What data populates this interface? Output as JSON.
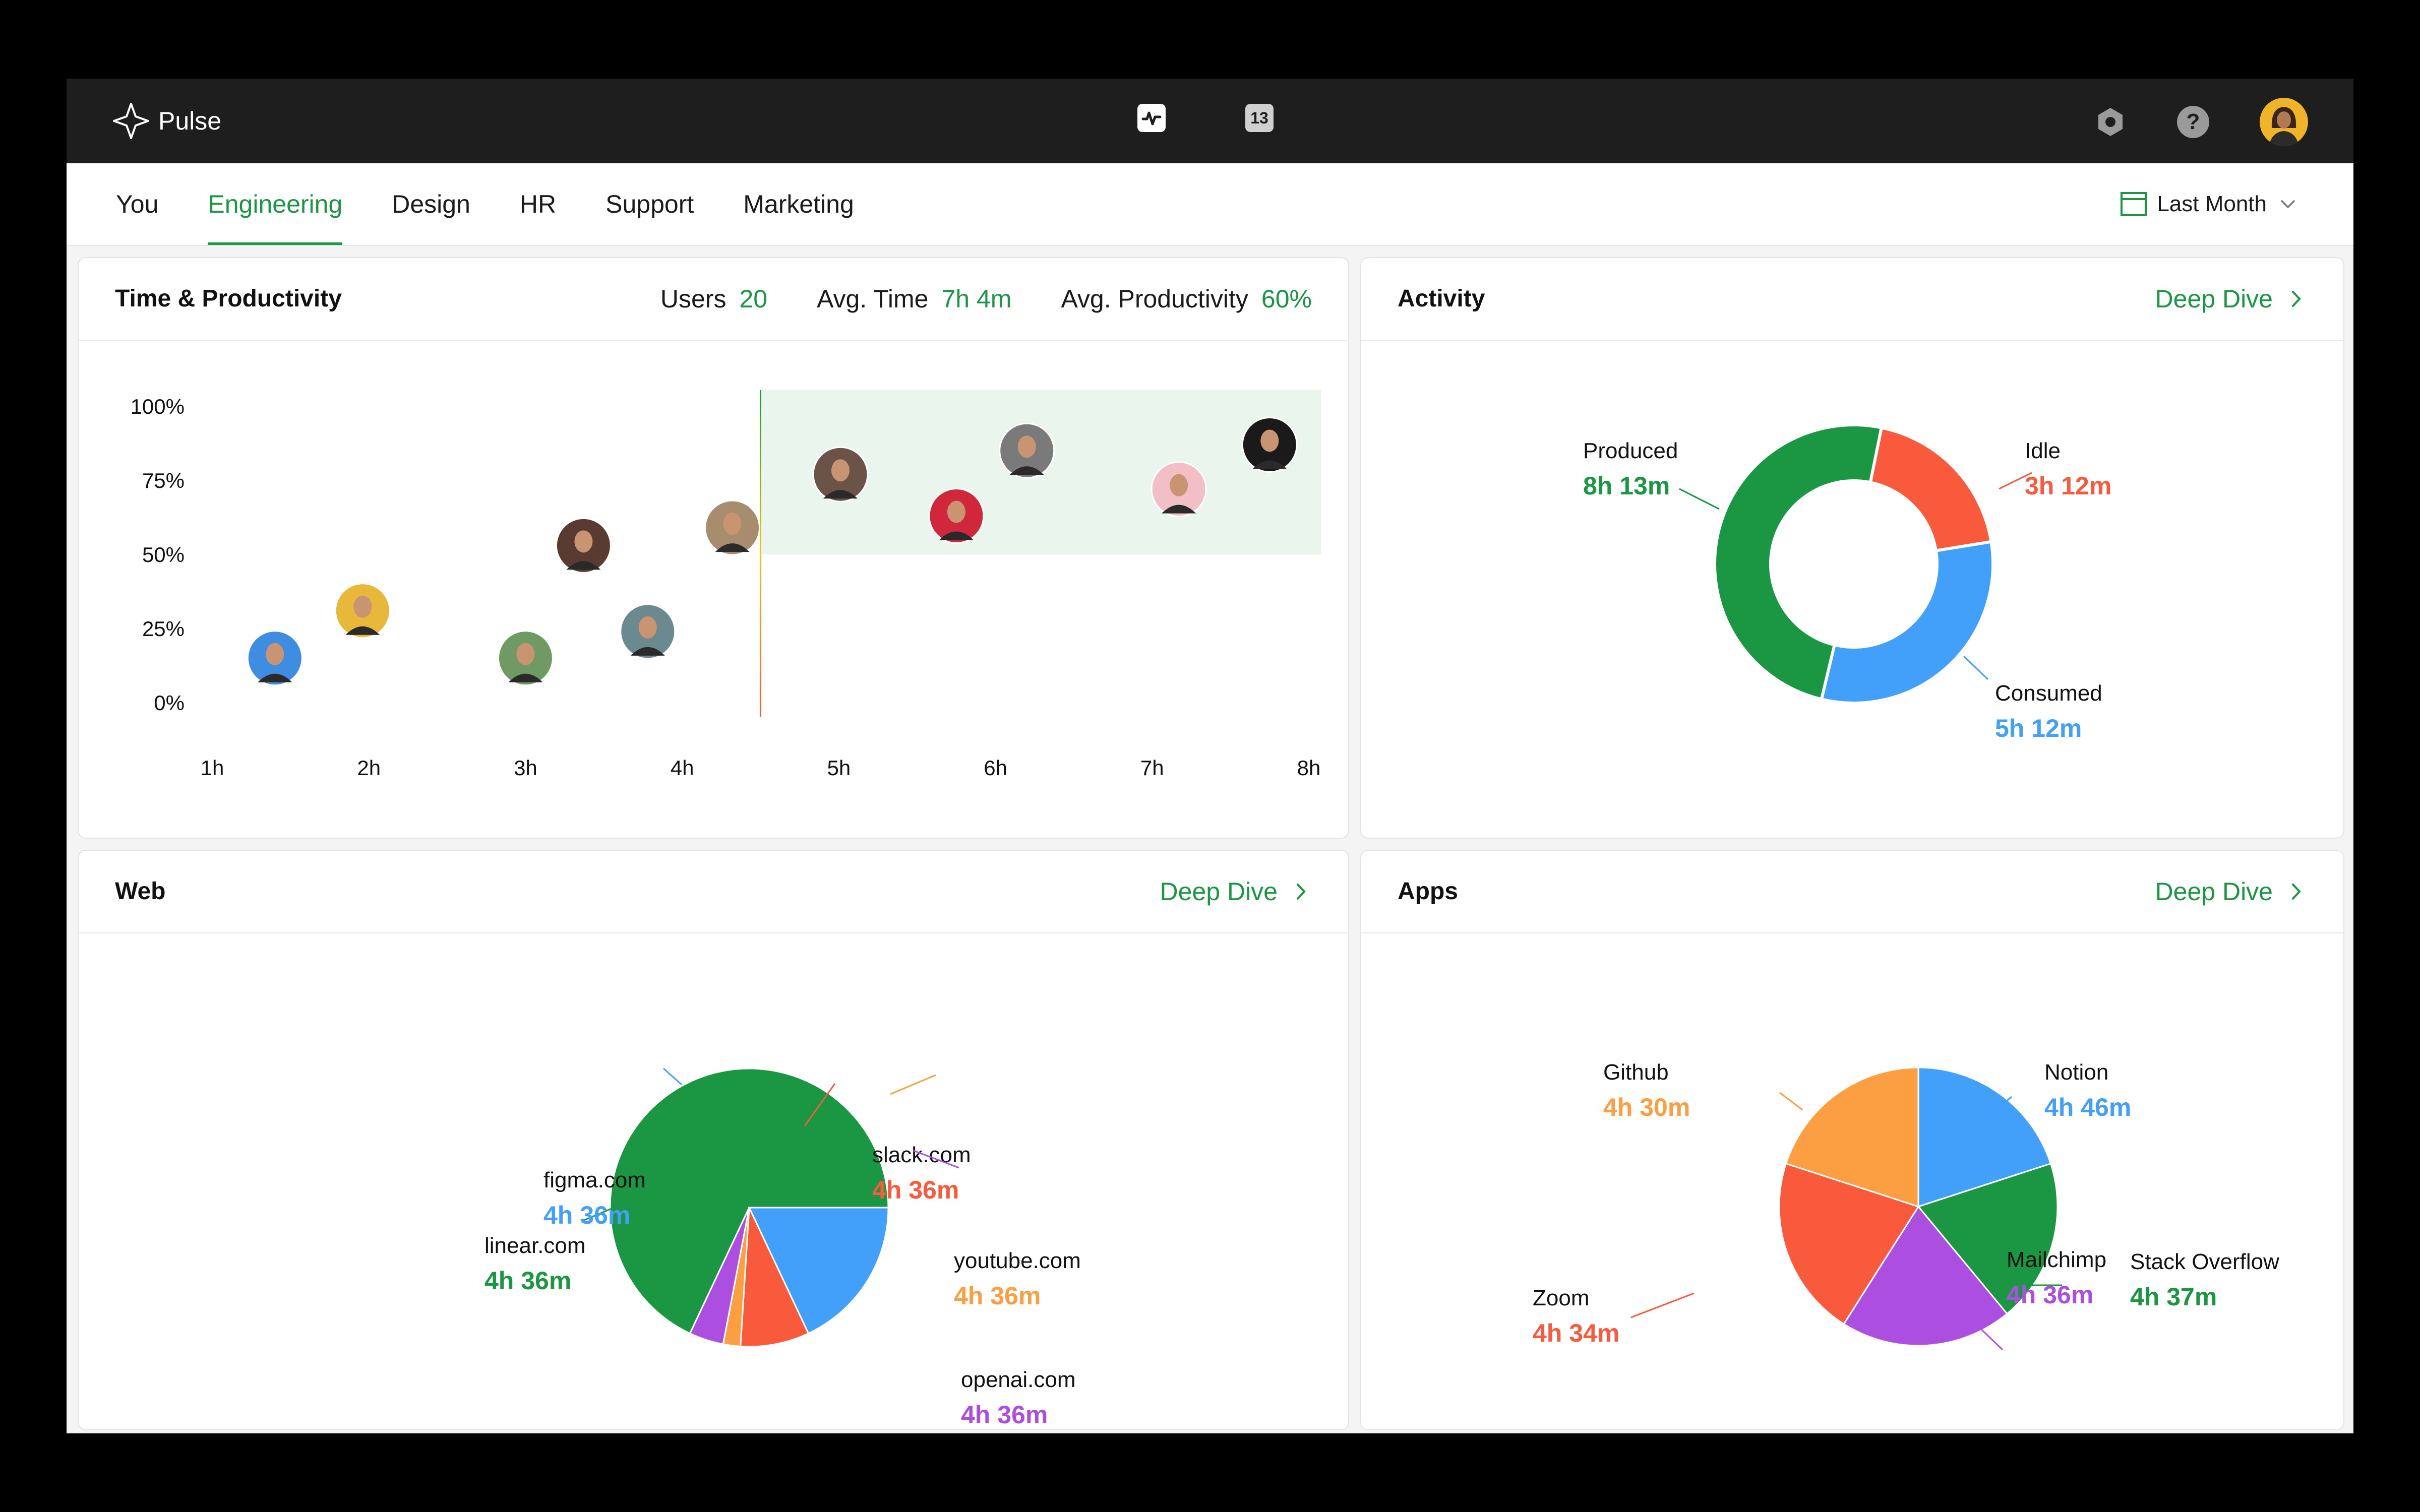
{
  "app": {
    "name": "Pulse",
    "notification_count": "13"
  },
  "icons": {
    "logo": "sparkle-logo-icon",
    "activity": "activity-icon",
    "badge": "calendar-badge-icon",
    "settings": "hexagon-settings-icon",
    "help": "help-icon",
    "avatar": "user-avatar",
    "help_glyph": "?"
  },
  "tabs": [
    {
      "label": "You",
      "active": false
    },
    {
      "label": "Engineering",
      "active": true
    },
    {
      "label": "Design",
      "active": false
    },
    {
      "label": "HR",
      "active": false
    },
    {
      "label": "Support",
      "active": false
    },
    {
      "label": "Marketing",
      "active": false
    }
  ],
  "period": {
    "label": "Last Month"
  },
  "colors": {
    "green": "#1b9643",
    "red": "#fa5a3c",
    "blue": "#42a0fa",
    "orange": "#fc9e42",
    "purple": "#ac4fe0"
  },
  "productivity": {
    "title": "Time & Productivity",
    "stats": [
      {
        "label": "Users",
        "value": "20"
      },
      {
        "label": "Avg. Time",
        "value": "7h 4m"
      },
      {
        "label": "Avg. Productivity",
        "value": "60%"
      }
    ]
  },
  "activity": {
    "title": "Activity",
    "deep_dive": "Deep Dive"
  },
  "web": {
    "title": "Web",
    "deep_dive": "Deep Dive"
  },
  "apps": {
    "title": "Apps",
    "deep_dive": "Deep Dive"
  },
  "chart_data": [
    {
      "type": "scatter",
      "y_ticks": [
        "100%",
        "75%",
        "50%",
        "25%",
        "0%"
      ],
      "x_ticks": [
        "1h",
        "2h",
        "3h",
        "4h",
        "5h",
        "6h",
        "7h",
        "8h"
      ],
      "xlim": [
        1,
        8
      ],
      "ylim": [
        0,
        100
      ],
      "threshold": {
        "x": 4.5,
        "y": 50
      },
      "points": [
        {
          "x": 1.4,
          "y": 15,
          "color": "#3f8de0"
        },
        {
          "x": 1.96,
          "y": 31,
          "color": "#e8b83a"
        },
        {
          "x": 3.0,
          "y": 15,
          "color": "#6f9a63"
        },
        {
          "x": 3.37,
          "y": 53,
          "color": "#5a3b32"
        },
        {
          "x": 3.78,
          "y": 24,
          "color": "#6a8a8f"
        },
        {
          "x": 4.32,
          "y": 59,
          "color": "#a88c6e"
        },
        {
          "x": 5.01,
          "y": 77,
          "color": "#6b5447"
        },
        {
          "x": 5.75,
          "y": 63,
          "color": "#d0283a"
        },
        {
          "x": 6.2,
          "y": 85,
          "color": "#7a7a7a"
        },
        {
          "x": 7.17,
          "y": 72,
          "color": "#f3bfc6"
        },
        {
          "x": 7.75,
          "y": 87,
          "color": "#1a1a1a"
        }
      ]
    },
    {
      "type": "pie",
      "variant": "donut",
      "slices": [
        {
          "label": "Produced",
          "value_text": "8h 13m",
          "value": 493,
          "color": "#1b9643"
        },
        {
          "label": "Idle",
          "value_text": "3h 12m",
          "value": 192,
          "color": "#fa5a3c"
        },
        {
          "label": "Consumed",
          "value_text": "5h 12m",
          "value": 312,
          "color": "#42a0fa"
        }
      ]
    },
    {
      "type": "pie",
      "slices": [
        {
          "label": "linear.com",
          "value_text": "4h 36m",
          "share": 68,
          "color": "#1b9643"
        },
        {
          "label": "figma.com",
          "value_text": "4h 36m",
          "share": 18,
          "color": "#42a0fa"
        },
        {
          "label": "slack.com",
          "value_text": "4h 36m",
          "share": 8,
          "color": "#fa5a3c"
        },
        {
          "label": "youtube.com",
          "value_text": "4h 36m",
          "share": 2,
          "color": "#fc9e42"
        },
        {
          "label": "openai.com",
          "value_text": "4h 36m",
          "share": 4,
          "color": "#ac4fe0"
        }
      ]
    },
    {
      "type": "pie",
      "slices": [
        {
          "label": "Notion",
          "value_text": "4h 46m",
          "share": 20,
          "color": "#42a0fa"
        },
        {
          "label": "Stack Overflow",
          "value_text": "4h 37m",
          "share": 19,
          "color": "#1b9643"
        },
        {
          "label": "Mailchimp",
          "value_text": "4h 36m",
          "share": 20,
          "color": "#ac4fe0"
        },
        {
          "label": "Zoom",
          "value_text": "4h 34m",
          "share": 21,
          "color": "#fa5a3c"
        },
        {
          "label": "Github",
          "value_text": "4h 30m",
          "share": 20,
          "color": "#fc9e42"
        }
      ]
    }
  ]
}
